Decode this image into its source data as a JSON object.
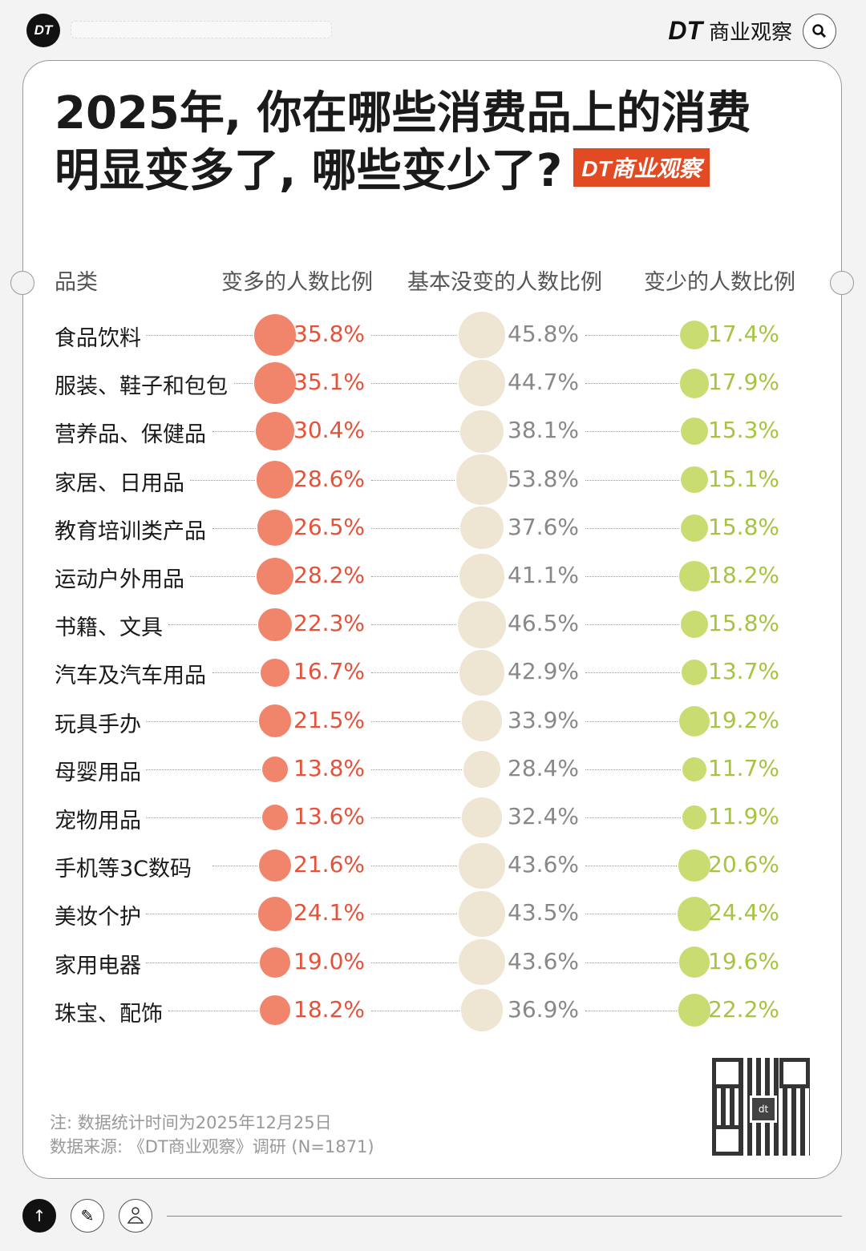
{
  "header": {
    "logo": "DT",
    "brand_dt": "DT",
    "brand_name": "商业观察",
    "search_icon": "search-icon"
  },
  "title": {
    "line1": "2025年, 你在哪些消费品上的消费",
    "line2": "明显变多了, 哪些变少了?",
    "badge": "DT商业观察"
  },
  "chart_data": {
    "type": "table",
    "columns": [
      "品类",
      "变多的人数比例",
      "基本没变的人数比例",
      "变少的人数比例"
    ],
    "colors": {
      "more": "#f0856c",
      "more_text": "#e4523a",
      "same": "#eee5d2",
      "same_text": "#888888",
      "less": "#c8dc72",
      "less_text": "#a6c440"
    },
    "rows": [
      {
        "category": "食品饮料",
        "more": 35.8,
        "same": 45.8,
        "less": 17.4
      },
      {
        "category": "服装、鞋子和包包",
        "more": 35.1,
        "same": 44.7,
        "less": 17.9
      },
      {
        "category": "营养品、保健品",
        "more": 30.4,
        "same": 38.1,
        "less": 15.3
      },
      {
        "category": "家居、日用品",
        "more": 28.6,
        "same": 53.8,
        "less": 15.1
      },
      {
        "category": "教育培训类产品",
        "more": 26.5,
        "same": 37.6,
        "less": 15.8
      },
      {
        "category": "运动户外用品",
        "more": 28.2,
        "same": 41.1,
        "less": 18.2
      },
      {
        "category": "书籍、文具",
        "more": 22.3,
        "same": 46.5,
        "less": 15.8
      },
      {
        "category": "汽车及汽车用品",
        "more": 16.7,
        "same": 42.9,
        "less": 13.7
      },
      {
        "category": "玩具手办",
        "more": 21.5,
        "same": 33.9,
        "less": 19.2
      },
      {
        "category": "母婴用品",
        "more": 13.8,
        "same": 28.4,
        "less": 11.7
      },
      {
        "category": "宠物用品",
        "more": 13.6,
        "same": 32.4,
        "less": 11.9
      },
      {
        "category": "手机等3C数码",
        "more": 21.6,
        "same": 43.6,
        "less": 20.6
      },
      {
        "category": "美妆个护",
        "more": 24.1,
        "same": 43.5,
        "less": 24.4
      },
      {
        "category": "家用电器",
        "more": 19.0,
        "same": 43.6,
        "less": 19.6
      },
      {
        "category": "珠宝、配饰",
        "more": 18.2,
        "same": 36.9,
        "less": 22.2
      }
    ]
  },
  "footer": {
    "note": "注: 数据统计时间为2025年12月25日",
    "source": "数据来源: 《DT商业观察》调研 (N=1871)",
    "qr_label": "dt"
  },
  "toolbar": {
    "up": "↑",
    "edit": "✎",
    "user": "👤"
  }
}
